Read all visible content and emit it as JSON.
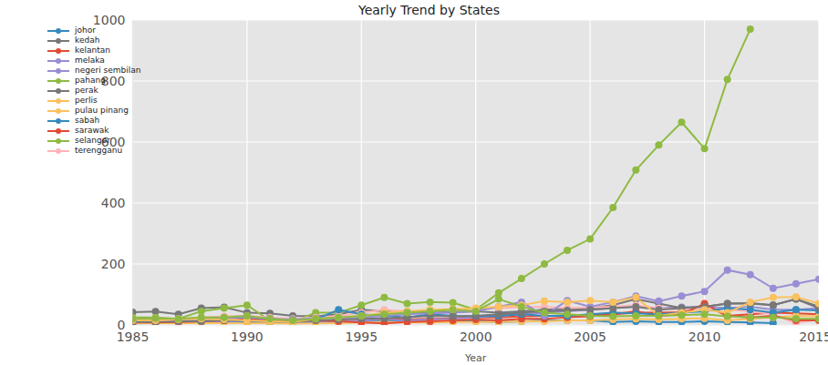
{
  "chart_data": {
    "type": "line",
    "title": "Yearly Trend by States",
    "x_label": "Year",
    "x": [
      1985,
      1986,
      1987,
      1988,
      1989,
      1990,
      1991,
      1992,
      1993,
      1994,
      1995,
      1996,
      1997,
      1998,
      1999,
      2000,
      2001,
      2002,
      2003,
      2004,
      2005,
      2006,
      2007,
      2008,
      2009,
      2010,
      2011,
      2012,
      2013,
      2014,
      2015
    ],
    "xlim": [
      1985,
      2015
    ],
    "xticks": [
      1985,
      1990,
      1995,
      2000,
      2005,
      2010,
      2015
    ],
    "ylim": [
      0,
      1000
    ],
    "yticks": [
      0,
      200,
      400,
      600,
      800,
      1000
    ],
    "grid": true,
    "legend": "upper left",
    "marker": "o",
    "series": [
      {
        "name": "sarawak",
        "color": "#E24A33",
        "values": [
          10,
          12,
          12,
          15,
          18,
          20,
          15,
          10,
          12,
          15,
          10,
          20,
          18,
          20,
          22,
          25,
          25,
          28,
          30,
          30,
          32,
          35,
          40,
          40,
          42,
          65,
          30,
          35,
          40,
          38,
          35
        ]
      },
      {
        "name": "sabah",
        "color": "#348ABD",
        "values": [
          5,
          6,
          8,
          8,
          10,
          10,
          8,
          6,
          8,
          10,
          12,
          15,
          12,
          10,
          12,
          12,
          10,
          12,
          15,
          15,
          15,
          10,
          12,
          10,
          10,
          12,
          10,
          8,
          6,
          null,
          null
        ]
      },
      {
        "name": "negeri sembilan",
        "color": "#988ED5",
        "values": [
          8,
          10,
          10,
          12,
          12,
          15,
          12,
          10,
          10,
          12,
          15,
          18,
          15,
          18,
          20,
          25,
          30,
          35,
          40,
          45,
          50,
          55,
          60,
          55,
          58,
          60,
          55,
          60,
          50,
          50,
          55
        ]
      },
      {
        "name": "perak",
        "color": "#777777",
        "values": [
          42,
          44,
          35,
          55,
          58,
          40,
          38,
          30,
          28,
          35,
          50,
          45,
          45,
          40,
          42,
          45,
          40,
          45,
          50,
          52,
          55,
          65,
          85,
          70,
          55,
          60,
          70,
          72,
          65,
          85,
          60
        ]
      },
      {
        "name": "perlis",
        "color": "#FBC15E",
        "values": [
          5,
          5,
          5,
          6,
          6,
          5,
          5,
          4,
          5,
          6,
          8,
          10,
          8,
          8,
          10,
          10,
          10,
          12,
          12,
          15,
          15,
          18,
          20,
          18,
          20,
          22,
          15,
          20,
          25,
          30,
          28
        ]
      },
      {
        "name": "selangor",
        "color": "#8EBA42",
        "values": [
          25,
          25,
          20,
          45,
          55,
          65,
          15,
          10,
          40,
          40,
          65,
          90,
          70,
          75,
          73,
          50,
          105,
          152,
          200,
          245,
          282,
          385,
          508,
          590,
          665,
          578,
          805,
          970,
          null,
          null,
          null
        ]
      },
      {
        "name": "terengganu",
        "color": "#FFB5B8",
        "values": [
          20,
          22,
          20,
          25,
          28,
          30,
          25,
          20,
          25,
          30,
          40,
          50,
          45,
          48,
          50,
          52,
          55,
          58,
          60,
          55,
          58,
          60,
          65,
          55,
          50,
          55,
          50,
          45,
          35,
          5,
          20
        ]
      },
      {
        "name": "kelantan",
        "color": "#E24A33",
        "values": [
          8,
          8,
          10,
          12,
          15,
          18,
          15,
          12,
          15,
          12,
          8,
          5,
          10,
          12,
          15,
          18,
          15,
          20,
          20,
          25,
          28,
          35,
          45,
          30,
          35,
          70,
          30,
          25,
          30,
          15,
          15
        ]
      },
      {
        "name": "johor",
        "color": "#348ABD",
        "values": [
          15,
          18,
          15,
          20,
          22,
          25,
          20,
          15,
          18,
          50,
          35,
          30,
          25,
          35,
          30,
          28,
          30,
          35,
          30,
          30,
          35,
          40,
          38,
          35,
          40,
          45,
          55,
          50,
          40,
          50,
          48
        ]
      },
      {
        "name": "melaka",
        "color": "#988ED5",
        "values": [
          10,
          12,
          15,
          15,
          20,
          25,
          20,
          18,
          22,
          25,
          25,
          30,
          35,
          38,
          40,
          45,
          60,
          75,
          30,
          80,
          60,
          75,
          95,
          78,
          95,
          110,
          180,
          165,
          120,
          135,
          150
        ]
      },
      {
        "name": "kedah",
        "color": "#777777",
        "values": [
          10,
          10,
          12,
          12,
          15,
          15,
          12,
          10,
          15,
          18,
          20,
          22,
          25,
          30,
          28,
          30,
          35,
          40,
          45,
          48,
          50,
          55,
          60,
          50,
          55,
          60,
          70,
          70,
          65,
          85,
          55
        ]
      },
      {
        "name": "pulau pinang",
        "color": "#FBC15E",
        "values": [
          15,
          15,
          18,
          20,
          18,
          15,
          12,
          10,
          20,
          25,
          30,
          40,
          45,
          50,
          52,
          55,
          60,
          65,
          78,
          75,
          80,
          75,
          90,
          30,
          40,
          50,
          40,
          75,
          90,
          92,
          70
        ]
      },
      {
        "name": "pahang",
        "color": "#8EBA42",
        "values": [
          20,
          22,
          20,
          25,
          25,
          30,
          20,
          15,
          20,
          25,
          30,
          35,
          40,
          45,
          50,
          45,
          85,
          60,
          40,
          35,
          30,
          28,
          30,
          30,
          32,
          35,
          28,
          25,
          25,
          20,
          20
        ]
      }
    ]
  }
}
